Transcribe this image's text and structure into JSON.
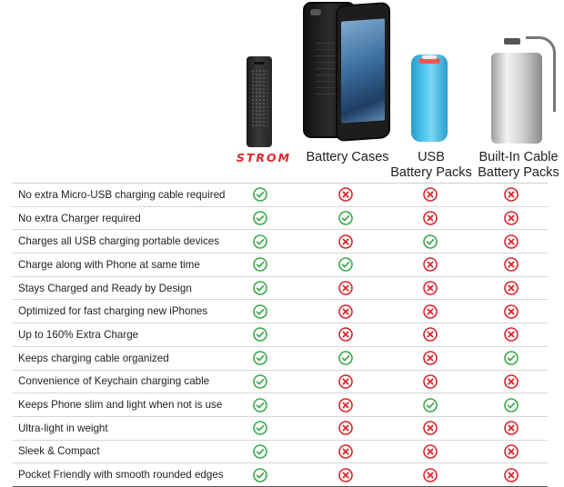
{
  "header": {
    "brand": "STROM",
    "columns": [
      "Battery Cases",
      "USB\nBattery Packs",
      "Built-In Cable\nBattery Packs"
    ]
  },
  "colors": {
    "check": "#3aa94a",
    "cross": "#d9262c",
    "brand": "#e0262f"
  },
  "rows": [
    {
      "feature": "No extra Micro-USB charging cable required",
      "values": [
        "check",
        "cross",
        "cross",
        "cross"
      ]
    },
    {
      "feature": "No extra Charger required",
      "values": [
        "check",
        "check",
        "cross",
        "cross"
      ]
    },
    {
      "feature": "Charges all USB charging portable devices",
      "values": [
        "check",
        "cross",
        "check",
        "cross"
      ]
    },
    {
      "feature": "Charge along with Phone at same time",
      "values": [
        "check",
        "check",
        "cross",
        "cross"
      ]
    },
    {
      "feature": "Stays Charged and Ready by Design",
      "values": [
        "check",
        "cross",
        "cross",
        "cross"
      ]
    },
    {
      "feature": "Optimized for fast charging new iPhones",
      "values": [
        "check",
        "cross",
        "cross",
        "cross"
      ]
    },
    {
      "feature": "Up to 160% Extra Charge",
      "values": [
        "check",
        "cross",
        "cross",
        "cross"
      ]
    },
    {
      "feature": "Keeps charging cable organized",
      "values": [
        "check",
        "check",
        "cross",
        "check"
      ]
    },
    {
      "feature": "Convenience of Keychain charging cable",
      "values": [
        "check",
        "cross",
        "cross",
        "cross"
      ]
    },
    {
      "feature": "Keeps Phone slim and light when not is use",
      "values": [
        "check",
        "cross",
        "check",
        "check"
      ]
    },
    {
      "feature": "Ultra-light in weight",
      "values": [
        "check",
        "cross",
        "cross",
        "cross"
      ]
    },
    {
      "feature": "Sleek & Compact",
      "values": [
        "check",
        "cross",
        "cross",
        "cross"
      ]
    },
    {
      "feature": "Pocket Friendly with smooth rounded edges",
      "values": [
        "check",
        "cross",
        "cross",
        "cross"
      ]
    }
  ]
}
